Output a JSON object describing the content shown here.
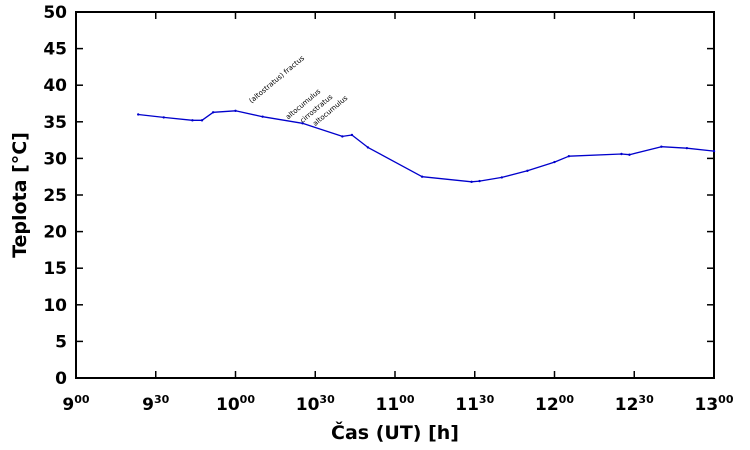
{
  "chart_data": {
    "type": "line",
    "title": "",
    "xlabel": "Čas (UT) [h]",
    "ylabel": "Teplota [°C]",
    "xlim": [
      9.0,
      13.0
    ],
    "ylim": [
      0,
      50
    ],
    "grid": false,
    "line_color": "#0000cc",
    "x_ticks": [
      {
        "value": 9.0,
        "hour": "9",
        "minute": "00"
      },
      {
        "value": 9.5,
        "hour": "9",
        "minute": "30"
      },
      {
        "value": 10.0,
        "hour": "10",
        "minute": "00"
      },
      {
        "value": 10.5,
        "hour": "10",
        "minute": "30"
      },
      {
        "value": 11.0,
        "hour": "11",
        "minute": "00"
      },
      {
        "value": 11.5,
        "hour": "11",
        "minute": "30"
      },
      {
        "value": 12.0,
        "hour": "12",
        "minute": "00"
      },
      {
        "value": 12.5,
        "hour": "12",
        "minute": "30"
      },
      {
        "value": 13.0,
        "hour": "13",
        "minute": "00"
      }
    ],
    "y_ticks": [
      0,
      5,
      10,
      15,
      20,
      25,
      30,
      35,
      40,
      45,
      50
    ],
    "series": [
      {
        "name": "Teplota",
        "x": [
          9.39,
          9.55,
          9.73,
          9.79,
          9.86,
          10.0,
          10.17,
          10.42,
          10.67,
          10.73,
          10.83,
          11.17,
          11.48,
          11.53,
          11.67,
          11.83,
          12.0,
          12.09,
          12.42,
          12.47,
          12.67,
          12.83,
          13.0
        ],
        "y": [
          36.0,
          35.6,
          35.2,
          35.2,
          36.3,
          36.5,
          35.7,
          34.8,
          33.0,
          33.2,
          31.5,
          27.5,
          26.8,
          26.9,
          27.4,
          28.3,
          29.5,
          30.3,
          30.6,
          30.5,
          31.6,
          31.4,
          31.0
        ]
      }
    ],
    "annotations": [
      {
        "text": "(altostratus) fractus",
        "x": 10.1,
        "y": 37.5
      },
      {
        "text": "altocumulus",
        "x": 10.33,
        "y": 35.3
      },
      {
        "text": "cirrostratus",
        "x": 10.42,
        "y": 34.8
      },
      {
        "text": "altocumulus",
        "x": 10.5,
        "y": 34.4
      }
    ]
  }
}
